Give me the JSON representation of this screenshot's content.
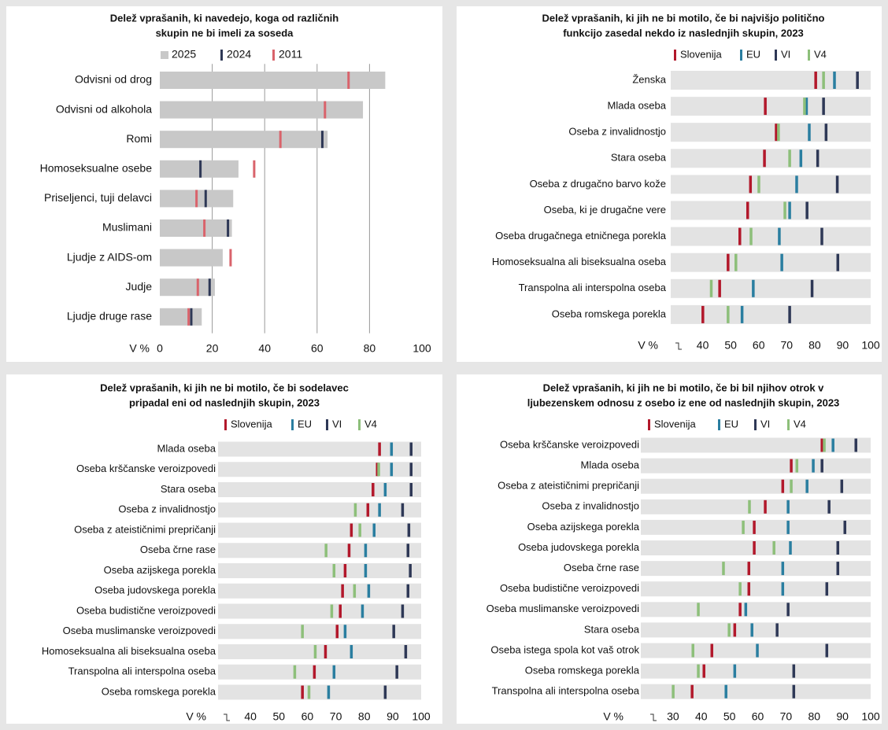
{
  "chart_data": [
    {
      "type": "bar",
      "title": [
        "Delež vprašanih, ki navedejo, koga od različnih",
        "skupin ne bi imeli za soseda"
      ],
      "xlabel": "V %",
      "categories": [
        "Odvisni od drog",
        "Odvisni od alkohola",
        "Romi",
        "Homoseksualne osebe",
        "Priseljenci, tuji delavci",
        "Muslimani",
        "Ljudje z AIDS-om",
        "Judje",
        "Ljudje druge rase"
      ],
      "series": [
        {
          "name": "2025",
          "color": "#c8c8c8",
          "values": [
            86,
            77.5,
            64,
            30,
            28,
            27.5,
            24,
            21,
            16
          ]
        },
        {
          "name": "2024",
          "color": "#2e3856",
          "values": [
            null,
            null,
            62,
            15.5,
            17.5,
            26,
            null,
            19,
            12
          ]
        },
        {
          "name": "2011",
          "color": "#d9636b",
          "values": [
            72,
            63,
            46,
            36,
            14,
            17,
            27,
            14.5,
            11
          ]
        }
      ],
      "xlim": [
        0,
        100
      ],
      "xticks": [
        0,
        20,
        40,
        60,
        80,
        100
      ],
      "grid": true
    },
    {
      "type": "dot",
      "title": [
        "Delež vprašanih, ki jih ne bi motilo, če bi najvišjo politično",
        "funkcijo zasedal nekdo iz naslednjih skupin, 2023"
      ],
      "xlabel": "V %",
      "categories": [
        "Ženska",
        "Mlada oseba",
        "Oseba z invalidnostjo",
        "Stara oseba",
        "Oseba z drugačno barvo kože",
        "Oseba, ki je drugačne vere",
        "Oseba drugačnega etničnega porekla",
        "Homoseksualna ali biseksualna oseba",
        "Transpolna ali interspolna oseba",
        "Oseba romskega porekla"
      ],
      "series": [
        {
          "name": "Slovenija",
          "color": "#b2182b",
          "values": [
            80.3,
            62.3,
            66.2,
            62,
            57,
            56,
            53.2,
            49,
            46,
            40
          ]
        },
        {
          "name": "EU",
          "color": "#2a7ea0",
          "values": [
            87,
            77,
            78,
            75,
            73.5,
            71,
            67.3,
            68.2,
            58,
            54
          ]
        },
        {
          "name": "VI",
          "color": "#2e3856",
          "values": [
            95.2,
            83.1,
            84,
            81,
            88,
            77.2,
            82.5,
            88.2,
            79,
            71
          ]
        },
        {
          "name": "V4",
          "color": "#8dbf7a",
          "values": [
            83.1,
            76.3,
            67,
            71,
            60,
            69.3,
            57.2,
            51.8,
            43,
            49
          ]
        }
      ],
      "xlim": [
        30,
        100
      ],
      "xticks": [
        40,
        50,
        60,
        70,
        80,
        90,
        100
      ]
    },
    {
      "type": "dot",
      "title": [
        "Delež vprašanih, ki jih ne bi motilo, če bi sodelavec",
        "pripadal eni od naslednjih skupin, 2023"
      ],
      "xlabel": "V %",
      "categories": [
        "Mlada oseba",
        "Oseba krščanske veroizpovedi",
        "Stara oseba",
        "Oseba z invalidnostjo",
        "Oseba z ateističnimi prepričanji",
        "Oseba črne rase",
        "Oseba azijskega porekla",
        "Oseba judovskega porekla",
        "Oseba budistične veroizpovedi",
        "Oseba muslimanske veroizpovedi",
        "Homoseksualna ali biseksualna oseba",
        "Transpolna ali interspolna oseba",
        "Oseba romskega porekla"
      ],
      "series": [
        {
          "name": "Slovenija",
          "color": "#b2182b",
          "values": [
            85.3,
            84.5,
            83,
            81.2,
            75.4,
            74.6,
            73.2,
            72.3,
            71.5,
            70.4,
            66.3,
            62.4,
            58.2
          ]
        },
        {
          "name": "EU",
          "color": "#2a7ea0",
          "values": [
            89.5,
            89.5,
            87.3,
            85.3,
            83.4,
            80.4,
            80.4,
            81.5,
            79.3,
            73.2,
            75.4,
            69.3,
            67.4
          ]
        },
        {
          "name": "VI",
          "color": "#2e3856",
          "values": [
            96.4,
            96.4,
            96.4,
            93.4,
            95.6,
            95.3,
            96.1,
            95.3,
            93.4,
            90.3,
            94.5,
            91.4,
            87.3
          ]
        },
        {
          "name": "V4",
          "color": "#8dbf7a",
          "values": [
            null,
            85,
            null,
            76.8,
            78.4,
            66.5,
            69.3,
            76.5,
            68.5,
            58.2,
            62.7,
            55.5,
            60.5
          ]
        }
      ],
      "xlim": [
        30,
        100
      ],
      "xticks": [
        40,
        50,
        60,
        70,
        80,
        90,
        100
      ]
    },
    {
      "type": "dot",
      "title": [
        "Delež vprašanih, ki jih ne bi motilo, če bi bil njihov otrok v",
        "ljubezenskem odnosu z osebo iz ene od naslednjih skupin, 2023"
      ],
      "xlabel": "V %",
      "categories": [
        "Oseba krščanske veroizpovedi",
        "Mlada oseba",
        "Oseba z ateističnimi prepričanji",
        "Oseba z invalidnostjo",
        "Oseba azijskega porekla",
        "Oseba judovskega porekla",
        "Oseba črne rase",
        "Oseba budistične veroizpovedi",
        "Oseba muslimanske veroizpovedi",
        "Stara oseba",
        "Oseba istega spola kot vaš otrok",
        "Oseba romskega porekla",
        "Transpolna ali interspolna oseba"
      ],
      "series": [
        {
          "name": "Slovenija",
          "color": "#b2182b",
          "values": [
            82.7,
            71.8,
            68.8,
            62.6,
            58.7,
            58.7,
            56.8,
            56.8,
            53.7,
            51.8,
            43.7,
            40.9,
            36.7
          ]
        },
        {
          "name": "EU",
          "color": "#2a7ea0",
          "values": [
            86.6,
            79.6,
            77.4,
            70.7,
            70.7,
            71.5,
            68.8,
            68.8,
            55.7,
            57.9,
            59.8,
            51.8,
            48.7
          ]
        },
        {
          "name": "VI",
          "color": "#2e3856",
          "values": [
            94.7,
            82.7,
            89.7,
            85.2,
            90.8,
            88.3,
            88.3,
            84.4,
            70.7,
            66.8,
            84.4,
            72.7,
            72.7
          ]
        },
        {
          "name": "V4",
          "color": "#8dbf7a",
          "values": [
            83.5,
            73.8,
            71.8,
            57,
            54.8,
            65.7,
            47.8,
            53.7,
            38.9,
            49.8,
            37,
            38.9,
            30
          ]
        }
      ],
      "xlim": [
        20,
        100
      ],
      "xticks": [
        30,
        40,
        50,
        60,
        70,
        80,
        90,
        100
      ]
    }
  ]
}
